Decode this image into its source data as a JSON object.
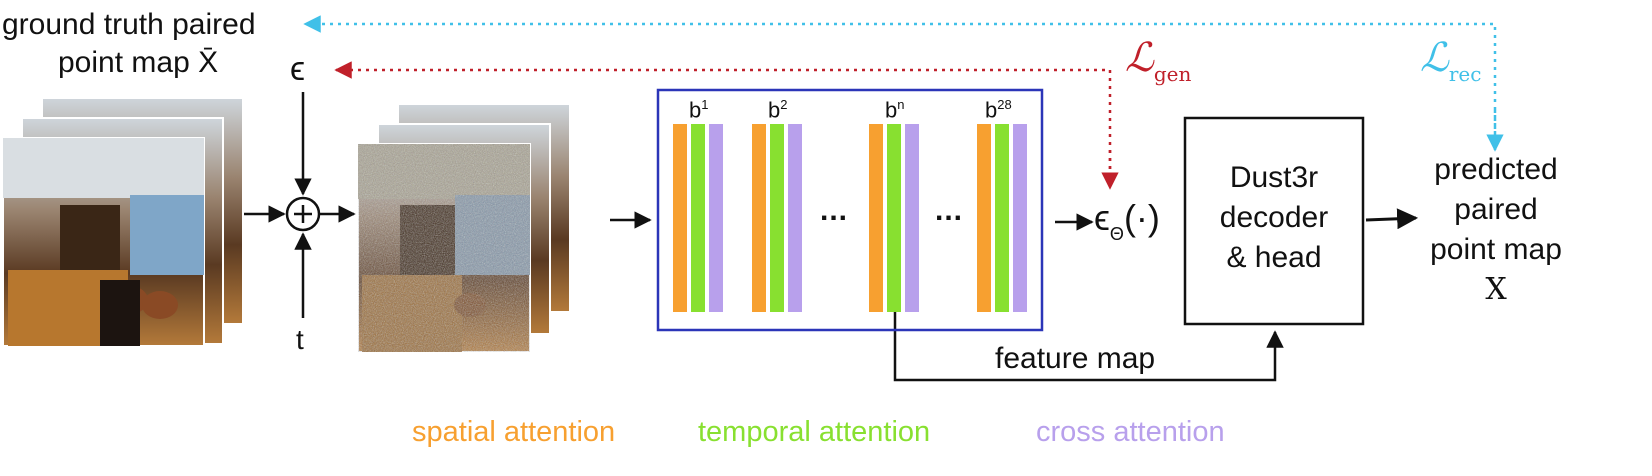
{
  "labels": {
    "ground_truth_line1": "ground truth paired",
    "ground_truth_line2": "point map X̄",
    "epsilon": "ϵ",
    "timestep": "t",
    "epsilon_theta": "ϵ",
    "epsilon_theta_sub": "Θ",
    "epsilon_theta_arg": "(·)",
    "loss_gen_symbol": "ℒ",
    "loss_gen_sub": "gen",
    "loss_rec_symbol": "ℒ",
    "loss_rec_sub": "rec",
    "decoder_line1": "Dust3r",
    "decoder_line2": "decoder",
    "decoder_line3": "& head",
    "predicted_line1": "predicted",
    "predicted_line2": "paired",
    "predicted_line3": "point map",
    "predicted_line4": "X",
    "feature_map": "feature map",
    "ellipsis": "..."
  },
  "blocks": [
    {
      "base": "b",
      "sup": "1"
    },
    {
      "base": "b",
      "sup": "2"
    },
    {
      "base": "b",
      "sup": "n"
    },
    {
      "base": "b",
      "sup": "28"
    }
  ],
  "legend": [
    {
      "label": "spatial attention",
      "color": "#f7a030"
    },
    {
      "label": "temporal attention",
      "color": "#88e030"
    },
    {
      "label": "cross attention",
      "color": "#b8a0ec"
    }
  ],
  "colors": {
    "spatial": "#f7a030",
    "temporal": "#88e030",
    "cross": "#b8a0ec",
    "block_border": "#2b35b8",
    "loss_gen": "#c0202a",
    "loss_rec": "#40c0e8"
  }
}
